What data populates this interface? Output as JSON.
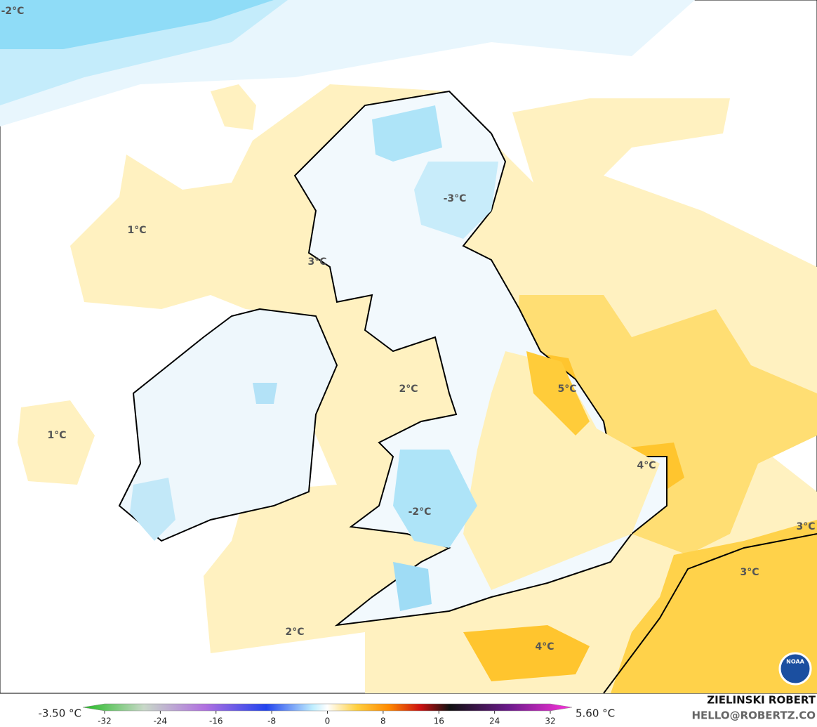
{
  "map": {
    "labels": [
      "-2°C",
      "1°C",
      "1°C",
      "3°C",
      "-3°C",
      "2°C",
      "5°C",
      "4°C",
      "-2°C",
      "3°C",
      "3°C",
      "4°C",
      "2°C"
    ],
    "colorbar": {
      "min_label": "-3.50 °C",
      "max_label": "5.60 °C",
      "xlim": [
        -32,
        32
      ],
      "xticks": [
        -32,
        -24,
        -16,
        -8,
        0,
        8,
        16,
        24,
        32
      ]
    },
    "credit": {
      "name": "ZIELINSKI ROBERT",
      "email": "HELLO@ROBERTZ.CO",
      "logo": "NOAA"
    }
  }
}
